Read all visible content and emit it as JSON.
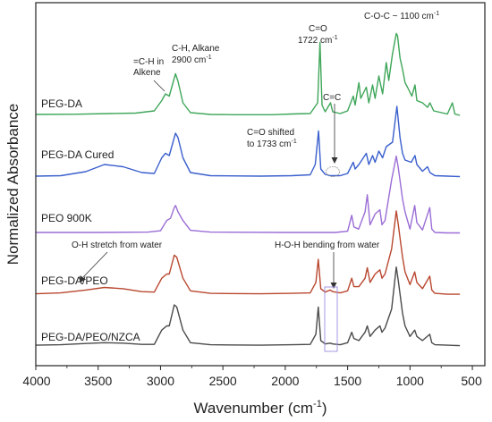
{
  "chart_data": {
    "type": "line",
    "xlabel_text": "Wavenumber (cm",
    "xlabel_sup": "-1",
    "xlabel_close": ")",
    "ylabel": "Normalized Absorbance",
    "xlim": [
      4000,
      400
    ],
    "x_reversed": true,
    "xticks": [
      4000,
      3500,
      3000,
      2500,
      2000,
      1500,
      1000,
      500
    ],
    "series": [
      {
        "name": "PEG-DA",
        "color": "#3ea659",
        "points": [
          [
            4000,
            0.04
          ],
          [
            3700,
            0.045
          ],
          [
            3400,
            0.06
          ],
          [
            3200,
            0.07
          ],
          [
            3050,
            0.12
          ],
          [
            2990,
            0.35
          ],
          [
            2960,
            0.5
          ],
          [
            2930,
            0.45
          ],
          [
            2900,
            0.75
          ],
          [
            2880,
            0.95
          ],
          [
            2860,
            0.78
          ],
          [
            2820,
            0.3
          ],
          [
            2760,
            0.08
          ],
          [
            2600,
            0.04
          ],
          [
            2400,
            0.035
          ],
          [
            2100,
            0.035
          ],
          [
            1950,
            0.05
          ],
          [
            1800,
            0.06
          ],
          [
            1740,
            0.3
          ],
          [
            1722,
            1.65
          ],
          [
            1705,
            0.25
          ],
          [
            1680,
            0.1
          ],
          [
            1637,
            0.3
          ],
          [
            1620,
            0.1
          ],
          [
            1560,
            0.06
          ],
          [
            1500,
            0.12
          ],
          [
            1455,
            0.45
          ],
          [
            1440,
            0.25
          ],
          [
            1410,
            0.75
          ],
          [
            1395,
            0.4
          ],
          [
            1350,
            0.65
          ],
          [
            1330,
            0.3
          ],
          [
            1300,
            0.7
          ],
          [
            1280,
            0.4
          ],
          [
            1250,
            0.9
          ],
          [
            1220,
            0.5
          ],
          [
            1190,
            1.2
          ],
          [
            1170,
            0.8
          ],
          [
            1140,
            1.4
          ],
          [
            1110,
            1.85
          ],
          [
            1100,
            1.8
          ],
          [
            1080,
            1.3
          ],
          [
            1060,
            1.05
          ],
          [
            1040,
            0.75
          ],
          [
            1020,
            0.65
          ],
          [
            985,
            0.45
          ],
          [
            960,
            0.7
          ],
          [
            945,
            0.35
          ],
          [
            900,
            0.3
          ],
          [
            860,
            0.2
          ],
          [
            840,
            0.3
          ],
          [
            810,
            0.12
          ],
          [
            700,
            0.05
          ],
          [
            660,
            0.3
          ],
          [
            640,
            0.05
          ],
          [
            600,
            0.02
          ]
        ]
      },
      {
        "name": "PEG-DA Cured",
        "color": "#3a5fcd",
        "points": [
          [
            4000,
            0.04
          ],
          [
            3800,
            0.05
          ],
          [
            3600,
            0.14
          ],
          [
            3450,
            0.3
          ],
          [
            3300,
            0.25
          ],
          [
            3150,
            0.12
          ],
          [
            3050,
            0.1
          ],
          [
            2990,
            0.45
          ],
          [
            2960,
            0.55
          ],
          [
            2930,
            0.5
          ],
          [
            2880,
            1.0
          ],
          [
            2860,
            0.9
          ],
          [
            2820,
            0.45
          ],
          [
            2760,
            0.12
          ],
          [
            2600,
            0.05
          ],
          [
            2200,
            0.04
          ],
          [
            1950,
            0.05
          ],
          [
            1800,
            0.07
          ],
          [
            1760,
            0.3
          ],
          [
            1733,
            1.05
          ],
          [
            1715,
            0.2
          ],
          [
            1680,
            0.08
          ],
          [
            1640,
            0.05
          ],
          [
            1560,
            0.05
          ],
          [
            1500,
            0.1
          ],
          [
            1455,
            0.35
          ],
          [
            1440,
            0.2
          ],
          [
            1410,
            0.3
          ],
          [
            1350,
            0.55
          ],
          [
            1330,
            0.3
          ],
          [
            1300,
            0.5
          ],
          [
            1280,
            0.35
          ],
          [
            1250,
            0.6
          ],
          [
            1220,
            0.45
          ],
          [
            1190,
            0.7
          ],
          [
            1140,
            0.8
          ],
          [
            1105,
            1.6
          ],
          [
            1080,
            0.9
          ],
          [
            1060,
            0.55
          ],
          [
            1040,
            0.4
          ],
          [
            990,
            0.35
          ],
          [
            960,
            0.5
          ],
          [
            945,
            0.3
          ],
          [
            900,
            0.15
          ],
          [
            860,
            0.25
          ],
          [
            840,
            0.12
          ],
          [
            800,
            0.05
          ],
          [
            700,
            0.04
          ],
          [
            600,
            0.03
          ]
        ]
      },
      {
        "name": "PEO 900K",
        "color": "#9b6dd6",
        "points": [
          [
            4000,
            0.02
          ],
          [
            3500,
            0.02
          ],
          [
            3100,
            0.03
          ],
          [
            3000,
            0.06
          ],
          [
            2950,
            0.3
          ],
          [
            2920,
            0.35
          ],
          [
            2890,
            0.6
          ],
          [
            2880,
            0.65
          ],
          [
            2860,
            0.5
          ],
          [
            2820,
            0.3
          ],
          [
            2760,
            0.07
          ],
          [
            2600,
            0.03
          ],
          [
            2000,
            0.02
          ],
          [
            1750,
            0.02
          ],
          [
            1700,
            0.02
          ],
          [
            1600,
            0.02
          ],
          [
            1500,
            0.05
          ],
          [
            1467,
            0.42
          ],
          [
            1450,
            0.15
          ],
          [
            1412,
            0.1
          ],
          [
            1360,
            0.5
          ],
          [
            1342,
            0.9
          ],
          [
            1320,
            0.2
          ],
          [
            1280,
            0.45
          ],
          [
            1241,
            0.55
          ],
          [
            1225,
            0.2
          ],
          [
            1200,
            0.3
          ],
          [
            1147,
            1.25
          ],
          [
            1110,
            1.8
          ],
          [
            1095,
            1.55
          ],
          [
            1060,
            0.8
          ],
          [
            1040,
            0.5
          ],
          [
            1000,
            0.1
          ],
          [
            962,
            0.65
          ],
          [
            945,
            0.25
          ],
          [
            900,
            0.08
          ],
          [
            842,
            0.6
          ],
          [
            825,
            0.1
          ],
          [
            800,
            0.02
          ],
          [
            700,
            0.01
          ],
          [
            600,
            0.01
          ]
        ]
      },
      {
        "name": "PEG-DA/PEO",
        "color": "#b9472f",
        "points": [
          [
            4000,
            0.03
          ],
          [
            3800,
            0.05
          ],
          [
            3600,
            0.12
          ],
          [
            3450,
            0.18
          ],
          [
            3300,
            0.15
          ],
          [
            3150,
            0.08
          ],
          [
            3050,
            0.07
          ],
          [
            2990,
            0.4
          ],
          [
            2950,
            0.5
          ],
          [
            2930,
            0.5
          ],
          [
            2890,
            0.95
          ],
          [
            2870,
            0.9
          ],
          [
            2820,
            0.4
          ],
          [
            2760,
            0.1
          ],
          [
            2600,
            0.04
          ],
          [
            2200,
            0.03
          ],
          [
            1950,
            0.04
          ],
          [
            1800,
            0.05
          ],
          [
            1755,
            0.3
          ],
          [
            1735,
            0.85
          ],
          [
            1715,
            0.15
          ],
          [
            1680,
            0.07
          ],
          [
            1640,
            0.12
          ],
          [
            1620,
            0.08
          ],
          [
            1560,
            0.05
          ],
          [
            1500,
            0.1
          ],
          [
            1467,
            0.4
          ],
          [
            1450,
            0.2
          ],
          [
            1410,
            0.2
          ],
          [
            1360,
            0.4
          ],
          [
            1342,
            0.65
          ],
          [
            1320,
            0.3
          ],
          [
            1280,
            0.5
          ],
          [
            1241,
            0.6
          ],
          [
            1225,
            0.4
          ],
          [
            1200,
            0.5
          ],
          [
            1147,
            1.1
          ],
          [
            1110,
            2.0
          ],
          [
            1095,
            1.7
          ],
          [
            1060,
            0.9
          ],
          [
            1040,
            0.55
          ],
          [
            1000,
            0.25
          ],
          [
            962,
            0.55
          ],
          [
            945,
            0.3
          ],
          [
            900,
            0.15
          ],
          [
            842,
            0.45
          ],
          [
            825,
            0.12
          ],
          [
            800,
            0.04
          ],
          [
            700,
            0.02
          ],
          [
            600,
            0.02
          ]
        ]
      },
      {
        "name": "PEG-DA/PEO/NZCA",
        "color": "#4a4a4a",
        "points": [
          [
            4000,
            0.04
          ],
          [
            3800,
            0.05
          ],
          [
            3600,
            0.08
          ],
          [
            3450,
            0.1
          ],
          [
            3300,
            0.09
          ],
          [
            3150,
            0.06
          ],
          [
            3050,
            0.06
          ],
          [
            2990,
            0.4
          ],
          [
            2950,
            0.5
          ],
          [
            2930,
            0.5
          ],
          [
            2890,
            1.0
          ],
          [
            2870,
            0.95
          ],
          [
            2820,
            0.4
          ],
          [
            2760,
            0.1
          ],
          [
            2600,
            0.05
          ],
          [
            2200,
            0.04
          ],
          [
            1950,
            0.05
          ],
          [
            1800,
            0.06
          ],
          [
            1755,
            0.3
          ],
          [
            1735,
            0.95
          ],
          [
            1715,
            0.15
          ],
          [
            1680,
            0.07
          ],
          [
            1640,
            0.09
          ],
          [
            1620,
            0.07
          ],
          [
            1560,
            0.05
          ],
          [
            1500,
            0.1
          ],
          [
            1467,
            0.35
          ],
          [
            1450,
            0.2
          ],
          [
            1410,
            0.15
          ],
          [
            1360,
            0.35
          ],
          [
            1342,
            0.5
          ],
          [
            1320,
            0.25
          ],
          [
            1280,
            0.4
          ],
          [
            1241,
            0.5
          ],
          [
            1225,
            0.35
          ],
          [
            1200,
            0.45
          ],
          [
            1147,
            0.9
          ],
          [
            1110,
            1.9
          ],
          [
            1095,
            1.6
          ],
          [
            1060,
            0.8
          ],
          [
            1040,
            0.5
          ],
          [
            1000,
            0.25
          ],
          [
            962,
            0.4
          ],
          [
            945,
            0.25
          ],
          [
            900,
            0.15
          ],
          [
            842,
            0.3
          ],
          [
            825,
            0.1
          ],
          [
            800,
            0.05
          ],
          [
            700,
            0.04
          ],
          [
            600,
            0.03
          ]
        ]
      }
    ]
  },
  "annotations": {
    "ch_alkene_l1": "=C-H in",
    "ch_alkene_l2": "Alkene",
    "ch_alkane_l1": "C-H, Alkane",
    "ch_alkane_l2": "2900 cm",
    "ch_alkane_sup": "-1",
    "co_l1": "C=O",
    "co_l2": "1722 cm",
    "co_sup": "-1",
    "coc": "C-O-C ~ 1100 cm",
    "coc_sup": "-1",
    "cc": "C=C",
    "co_shift_l1": "C=O shifted",
    "co_shift_l2": "to 1733 cm",
    "co_shift_sup": "-1",
    "oh": "O-H stretch from water",
    "hoh": "H-O-H bending from water"
  }
}
